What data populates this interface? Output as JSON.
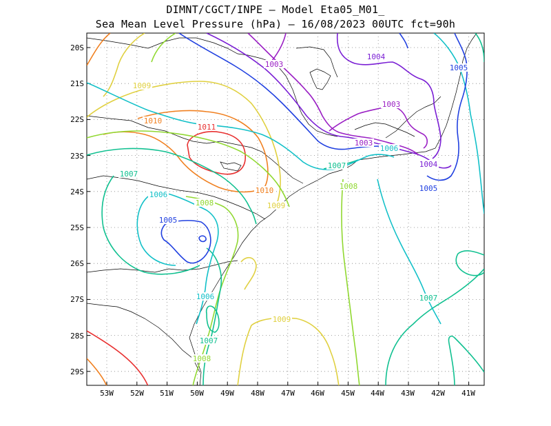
{
  "title": {
    "line1": "DIMNT/CGCT/INPE  –   Model Eta05_M01_",
    "line2": "Sea Mean Level Pressure (hPa) – 16/08/2023 00UTC fct=90h"
  },
  "axes": {
    "lon_ticks": [
      "53W",
      "52W",
      "51W",
      "50W",
      "49W",
      "48W",
      "47W",
      "46W",
      "45W",
      "44W",
      "43W",
      "42W",
      "41W"
    ],
    "lat_ticks": [
      "20S",
      "21S",
      "22S",
      "23S",
      "24S",
      "25S",
      "26S",
      "27S",
      "28S",
      "29S"
    ]
  },
  "contour_colors": {
    "1003": "#9a1fc4",
    "1004": "#7a1fd4",
    "1005": "#2040e0",
    "1006": "#12c0c8",
    "1007": "#10c090",
    "1008": "#90d830",
    "1009": "#e0d040",
    "1010": "#f08020",
    "1011": "#e83030"
  },
  "contour_labels": [
    {
      "text": "1003",
      "level": "1003"
    },
    {
      "text": "1004",
      "level": "1004"
    },
    {
      "text": "1005",
      "level": "1005"
    },
    {
      "text": "1003",
      "level": "1003"
    },
    {
      "text": "1003",
      "level": "1003"
    },
    {
      "text": "1006",
      "level": "1006"
    },
    {
      "text": "1004",
      "level": "1004"
    },
    {
      "text": "1005",
      "level": "1005"
    },
    {
      "text": "1007",
      "level": "1007"
    },
    {
      "text": "1008",
      "level": "1008"
    },
    {
      "text": "1009",
      "level": "1009"
    },
    {
      "text": "1010",
      "level": "1010"
    },
    {
      "text": "1011",
      "level": "1011"
    },
    {
      "text": "1010",
      "level": "1010"
    },
    {
      "text": "1007",
      "level": "1007"
    },
    {
      "text": "1006",
      "level": "1006"
    },
    {
      "text": "1008",
      "level": "1008"
    },
    {
      "text": "1009",
      "level": "1009"
    },
    {
      "text": "1005",
      "level": "1005"
    },
    {
      "text": "1006",
      "level": "1006"
    },
    {
      "text": "1007",
      "level": "1007"
    },
    {
      "text": "1008",
      "level": "1008"
    },
    {
      "text": "1009",
      "level": "1009"
    },
    {
      "text": "1007",
      "level": "1007"
    }
  ]
}
